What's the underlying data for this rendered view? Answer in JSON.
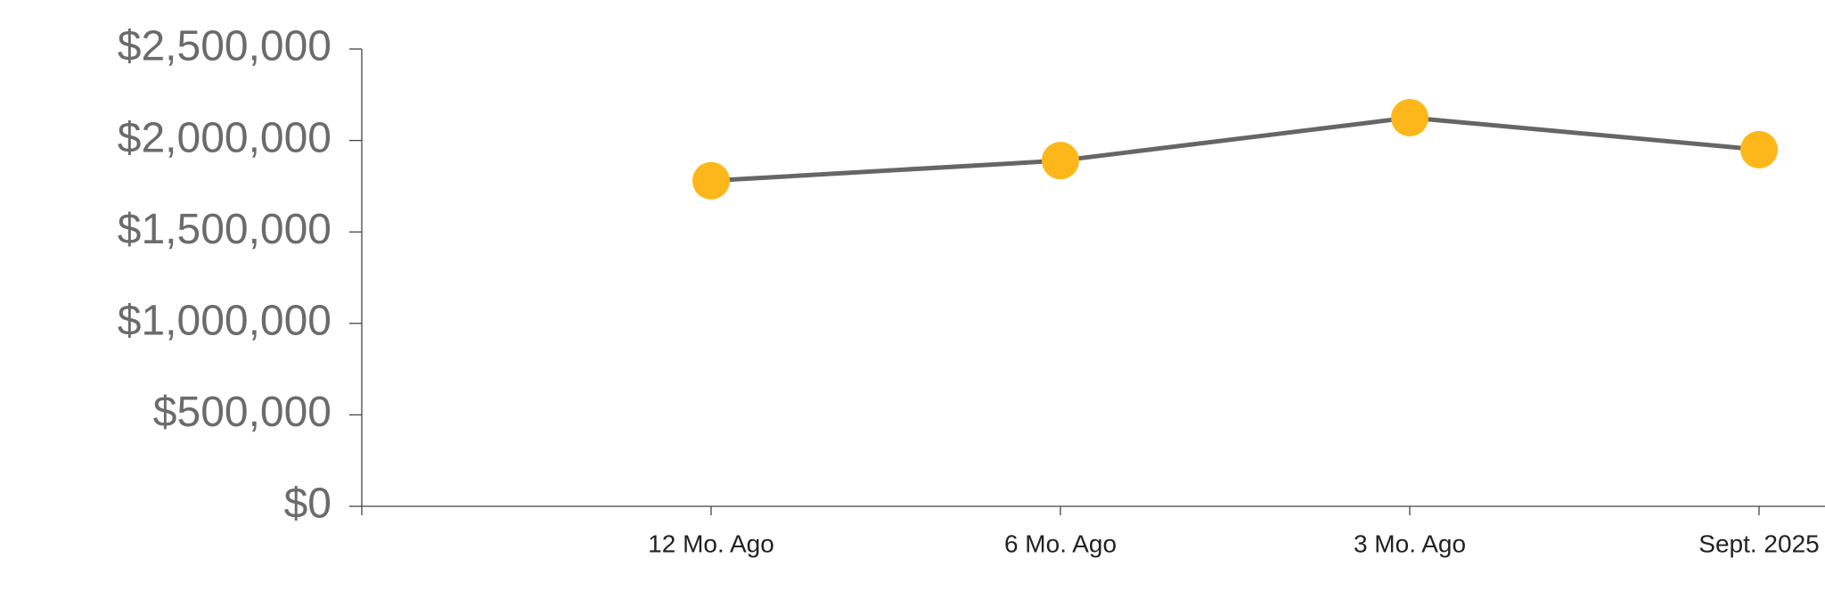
{
  "chart_data": {
    "type": "line",
    "categories": [
      null,
      "12 Mo. Ago",
      "6 Mo. Ago",
      "3 Mo. Ago",
      "Sept. 2025"
    ],
    "series": [
      {
        "line_color": "#666666",
        "color": "#fdb71a",
        "values": [
          null,
          1780000,
          1890000,
          2125000,
          1950000
        ]
      }
    ],
    "ylim": [
      0,
      2500000
    ],
    "yticks": [
      {
        "value": 0,
        "label": "$0"
      },
      {
        "value": 500000,
        "label": "$500,000"
      },
      {
        "value": 1000000,
        "label": "$1,000,000"
      },
      {
        "value": 1500000,
        "label": "$1,500,000"
      },
      {
        "value": 2000000,
        "label": "$2,000,000"
      },
      {
        "value": 2500000,
        "label": "$2,500,000"
      }
    ],
    "grid": false
  }
}
